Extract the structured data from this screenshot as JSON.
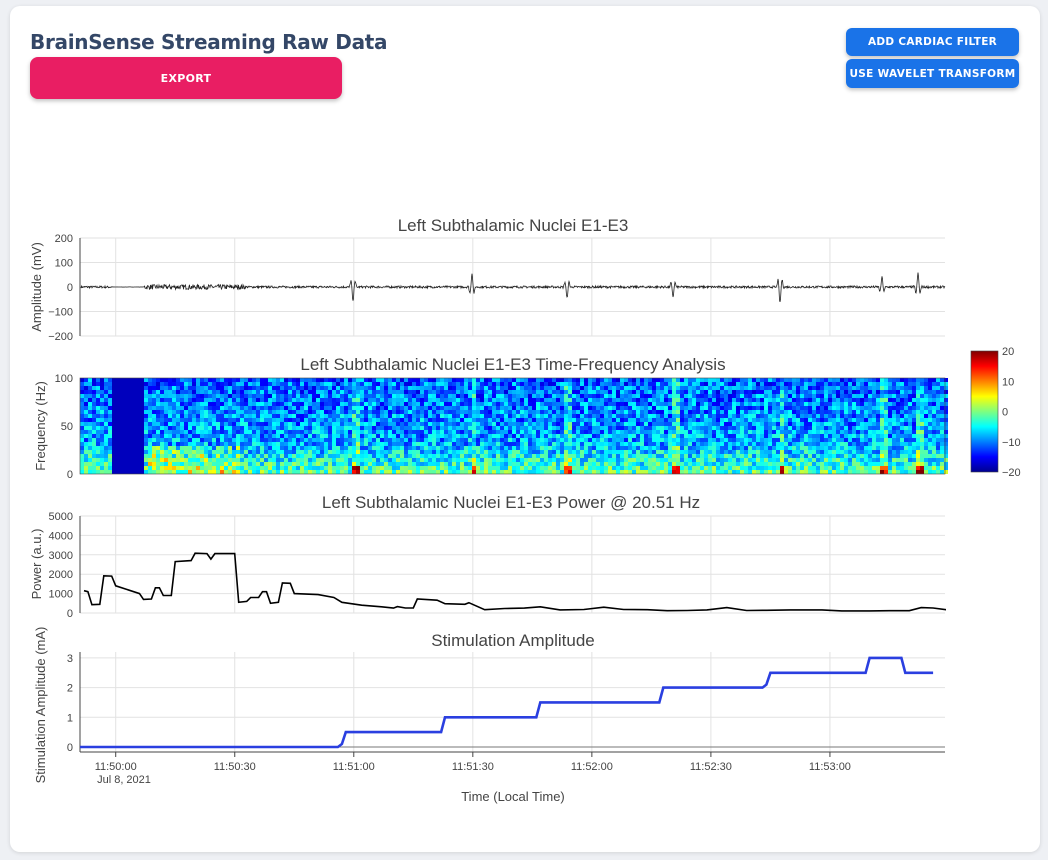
{
  "page": {
    "title": "BrainSense Streaming Raw Data",
    "buttons": {
      "export": "EXPORT",
      "cardiac": "ADD CARDIAC FILTER",
      "wavelet": "USE WAVELET TRANSFORM"
    }
  },
  "colors": {
    "export_button": "#e91e63",
    "action_button": "#1a73e8",
    "title_text": "#344767",
    "stim_line": "#2a3fe0",
    "trace_line": "#222222"
  },
  "chart_data": [
    {
      "type": "line",
      "title": "Left Subthalamic Nuclei E1-E3",
      "ylabel": "Amplitude (mV)",
      "ylim": [
        -200,
        200
      ],
      "yticks": [
        "200",
        "100",
        "0",
        "−100",
        "−200"
      ],
      "grid": true,
      "series": [
        {
          "values": "raw LFP trace, near 0 mV with transient spikes of roughly ±60 mV"
        }
      ]
    },
    {
      "type": "heatmap",
      "title": "Left Subthalamic Nuclei E1-E3 Time-Frequency Analysis",
      "ylabel": "Frequency (Hz)",
      "ylim": [
        0,
        100
      ],
      "yticks": [
        "100",
        "50",
        "0"
      ],
      "colorscale": "jet",
      "colorbar_range": [
        -20,
        20
      ],
      "colorbar_ticks": [
        "20",
        "10",
        "0",
        "−10",
        "−20"
      ]
    },
    {
      "type": "line",
      "title": "Left Subthalamic Nuclei E1-E3 Power @  20.51 Hz",
      "ylabel": "Power (a.u.)",
      "ylim": [
        0,
        5000
      ],
      "yticks": [
        "5000",
        "4000",
        "3000",
        "2000",
        "1000",
        "0"
      ],
      "grid": true,
      "series": [
        {
          "points": [
            [
              "11:49:52",
              1150
            ],
            [
              "11:49:53",
              1100
            ],
            [
              "11:49:54",
              430
            ],
            [
              "11:49:56",
              450
            ],
            [
              "11:49:57",
              1920
            ],
            [
              "11:49:59",
              1900
            ],
            [
              "11:50:00",
              1400
            ],
            [
              "11:50:06",
              1000
            ],
            [
              "11:50:07",
              700
            ],
            [
              "11:50:09",
              720
            ],
            [
              "11:50:10",
              1300
            ],
            [
              "11:50:11",
              1300
            ],
            [
              "11:50:12",
              900
            ],
            [
              "11:50:14",
              900
            ],
            [
              "11:50:15",
              2650
            ],
            [
              "11:50:19",
              2700
            ],
            [
              "11:50:20",
              3080
            ],
            [
              "11:50:23",
              3060
            ],
            [
              "11:50:24",
              2780
            ],
            [
              "11:50:25",
              3060
            ],
            [
              "11:50:30",
              3060
            ],
            [
              "11:50:31",
              550
            ],
            [
              "11:50:33",
              600
            ],
            [
              "11:50:34",
              800
            ],
            [
              "11:50:36",
              800
            ],
            [
              "11:50:37",
              1100
            ],
            [
              "11:50:38",
              1100
            ],
            [
              "11:50:39",
              500
            ],
            [
              "11:50:41",
              550
            ],
            [
              "11:50:42",
              1550
            ],
            [
              "11:50:44",
              1530
            ],
            [
              "11:50:45",
              1000
            ],
            [
              "11:50:51",
              950
            ],
            [
              "11:50:55",
              800
            ],
            [
              "11:50:57",
              550
            ],
            [
              "11:51:02",
              400
            ],
            [
              "11:51:07",
              320
            ],
            [
              "11:51:10",
              250
            ],
            [
              "11:51:11",
              330
            ],
            [
              "11:51:13",
              260
            ],
            [
              "11:51:15",
              260
            ],
            [
              "11:51:16",
              720
            ],
            [
              "11:51:21",
              660
            ],
            [
              "11:51:23",
              480
            ],
            [
              "11:51:28",
              450
            ],
            [
              "11:51:29",
              530
            ],
            [
              "11:51:33",
              170
            ],
            [
              "11:51:38",
              230
            ],
            [
              "11:51:43",
              250
            ],
            [
              "11:51:47",
              320
            ],
            [
              "11:51:52",
              160
            ],
            [
              "11:51:58",
              180
            ],
            [
              "11:52:03",
              300
            ],
            [
              "11:52:08",
              180
            ],
            [
              "11:52:14",
              170
            ],
            [
              "11:52:19",
              120
            ],
            [
              "11:52:24",
              130
            ],
            [
              "11:52:29",
              160
            ],
            [
              "11:52:34",
              280
            ],
            [
              "11:52:39",
              130
            ],
            [
              "11:52:44",
              140
            ],
            [
              "11:52:50",
              160
            ],
            [
              "11:52:58",
              160
            ],
            [
              "11:53:03",
              110
            ],
            [
              "11:53:10",
              110
            ],
            [
              "11:53:15",
              120
            ],
            [
              "11:53:20",
              120
            ],
            [
              "11:53:23",
              280
            ],
            [
              "11:53:26",
              260
            ],
            [
              "11:53:30",
              150
            ]
          ]
        }
      ]
    },
    {
      "type": "line",
      "title": "Stimulation Amplitude",
      "ylabel": "Stimulation Amplitude (mA)",
      "xlabel": "Time (Local Time)",
      "ylim": [
        0,
        3
      ],
      "yticks": [
        "3",
        "2",
        "1",
        "0"
      ],
      "xticks": [
        "11:50:00",
        "11:50:30",
        "11:51:00",
        "11:51:30",
        "11:52:00",
        "11:52:30",
        "11:53:00"
      ],
      "xdate_label": "Jul 8, 2021",
      "grid": true,
      "series": [
        {
          "points": [
            [
              "11:49:51",
              0
            ],
            [
              "11:50:56",
              0
            ],
            [
              "11:50:57",
              0.1
            ],
            [
              "11:50:58",
              0.5
            ],
            [
              "11:51:22",
              0.5
            ],
            [
              "11:51:23",
              1.0
            ],
            [
              "11:51:46",
              1.0
            ],
            [
              "11:51:47",
              1.5
            ],
            [
              "11:52:17",
              1.5
            ],
            [
              "11:52:18",
              2.0
            ],
            [
              "11:52:43",
              2.0
            ],
            [
              "11:52:44",
              2.1
            ],
            [
              "11:52:45",
              2.5
            ],
            [
              "11:53:09",
              2.5
            ],
            [
              "11:53:10",
              3.0
            ],
            [
              "11:53:18",
              3.0
            ],
            [
              "11:53:19",
              2.5
            ],
            [
              "11:53:26",
              2.5
            ]
          ]
        }
      ]
    }
  ]
}
